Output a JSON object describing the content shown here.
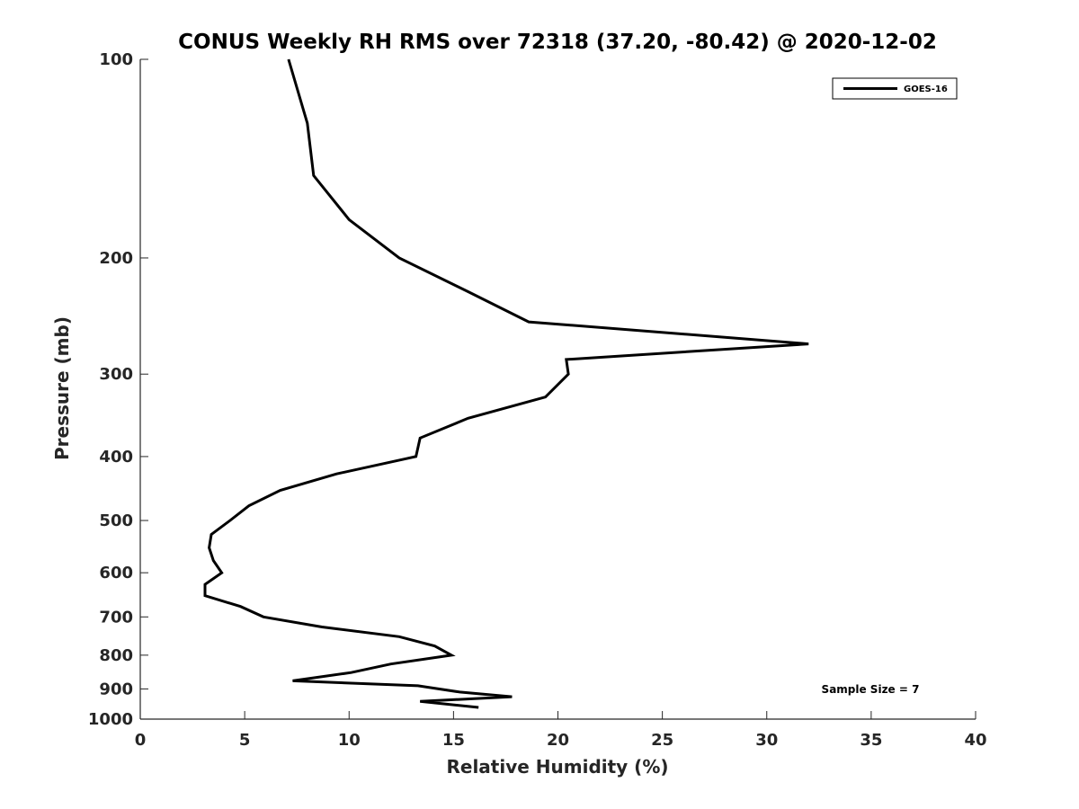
{
  "chart_data": {
    "type": "line",
    "title": "CONUS Weekly RH RMS over 72318 (37.20, -80.42) @ 2020-12-02",
    "xlabel": "Relative Humidity (%)",
    "ylabel": "Pressure (mb)",
    "xlim": [
      0,
      40
    ],
    "ylim": [
      100,
      1000
    ],
    "y_scale": "log",
    "y_reversed": true,
    "grid": false,
    "legend_position": "top-right",
    "xticks": [
      0,
      5,
      10,
      15,
      20,
      25,
      30,
      35,
      40
    ],
    "yticks": [
      100,
      200,
      300,
      400,
      500,
      600,
      700,
      800,
      900,
      1000
    ],
    "series": [
      {
        "name": "GOES-16",
        "color": "#000000",
        "points": [
          [
            7.1,
            100
          ],
          [
            8.0,
            125
          ],
          [
            8.3,
            150
          ],
          [
            10.0,
            175
          ],
          [
            12.4,
            200
          ],
          [
            15.7,
            225
          ],
          [
            18.6,
            250
          ],
          [
            32.0,
            270
          ],
          [
            20.4,
            285
          ],
          [
            20.5,
            300
          ],
          [
            19.4,
            325
          ],
          [
            15.7,
            350
          ],
          [
            13.4,
            375
          ],
          [
            13.2,
            400
          ],
          [
            9.4,
            425
          ],
          [
            6.7,
            450
          ],
          [
            5.2,
            475
          ],
          [
            4.3,
            500
          ],
          [
            3.4,
            525
          ],
          [
            3.3,
            550
          ],
          [
            3.5,
            575
          ],
          [
            3.9,
            600
          ],
          [
            3.1,
            625
          ],
          [
            3.1,
            650
          ],
          [
            4.8,
            675
          ],
          [
            5.9,
            700
          ],
          [
            8.7,
            725
          ],
          [
            12.4,
            750
          ],
          [
            14.1,
            775
          ],
          [
            14.9,
            800
          ],
          [
            12.0,
            825
          ],
          [
            10.1,
            850
          ],
          [
            7.3,
            875
          ],
          [
            13.3,
            890
          ],
          [
            15.3,
            910
          ],
          [
            17.8,
            925
          ],
          [
            13.4,
            940
          ],
          [
            16.2,
            960
          ]
        ]
      }
    ],
    "annotations": [
      "Sample Size = 7"
    ]
  }
}
